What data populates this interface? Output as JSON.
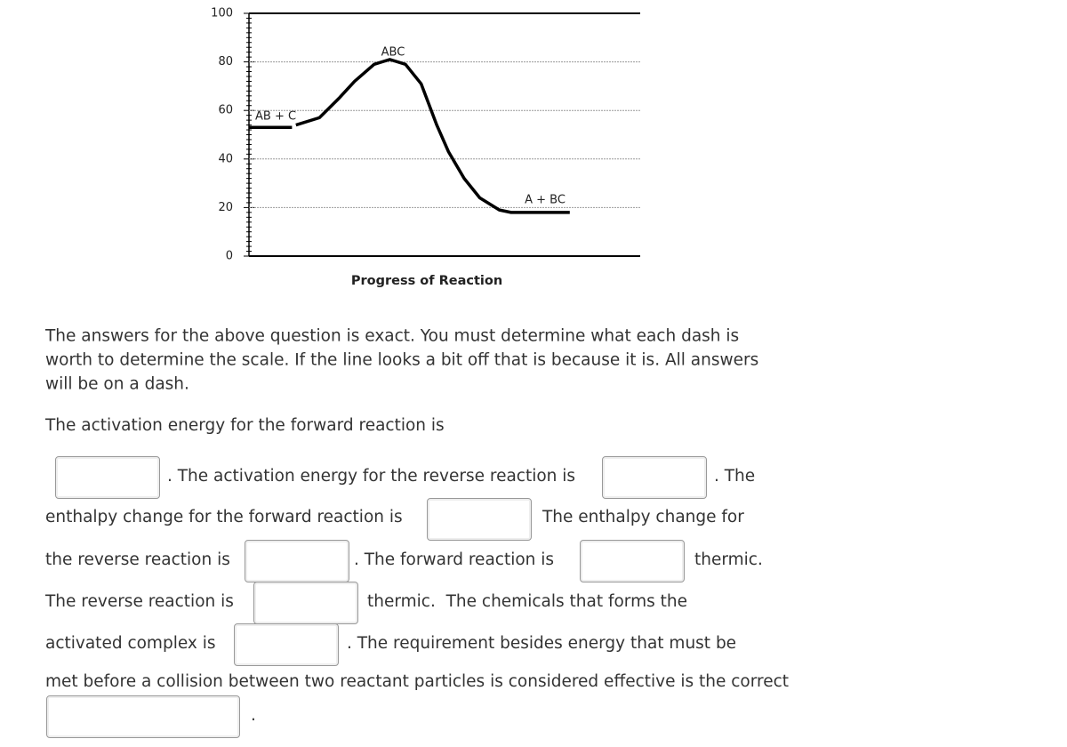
{
  "chart_data": {
    "type": "line",
    "x_label": "Progress of Reaction",
    "annotations": [
      "AB + C",
      "ABC",
      "A + BC"
    ],
    "x": [
      0,
      11,
      11.5,
      12,
      18,
      23,
      27,
      32,
      36,
      40,
      44,
      48,
      51,
      55,
      59,
      64,
      67,
      82
    ],
    "series": [
      {
        "color": "#000000",
        "values": [
          53,
          53,
          null,
          54,
          57,
          65,
          72,
          79,
          81,
          79,
          71,
          54,
          43,
          32,
          24,
          19,
          18,
          18
        ]
      }
    ],
    "xlim": [
      0,
      100
    ],
    "ylim": [
      0,
      100
    ],
    "yticks": [
      0,
      20,
      40,
      60,
      80,
      100
    ],
    "minor_yticks": [
      2,
      4,
      6,
      8,
      10,
      12,
      14,
      16,
      18,
      22,
      24,
      26,
      28,
      30,
      32,
      34,
      36,
      38,
      42,
      44,
      46,
      48,
      50,
      52,
      54,
      56,
      58,
      62,
      64,
      66,
      68,
      70,
      72,
      74,
      76,
      78,
      82,
      84,
      86,
      88,
      90,
      92,
      94,
      96,
      98
    ],
    "grid": true
  },
  "note": "The answers for the above question is exact. You must determine what each dash is worth to determine the scale. If the line looks a bit off that is because it is. All answers will be on a dash.",
  "question": [
    "The activation energy for the forward reaction is",
    ". The activation energy for the reverse reaction is",
    ". The",
    "enthalpy change for the forward reaction is",
    "The enthalpy change for",
    "the reverse reaction is",
    ". The forward reaction is",
    "thermic.",
    "The reverse reaction is",
    "thermic.  The chemicals that forms the",
    "activated complex is",
    ". The requirement besides energy that must be",
    "met before a collision between two reactant particles is considered effective is the correct",
    "."
  ]
}
